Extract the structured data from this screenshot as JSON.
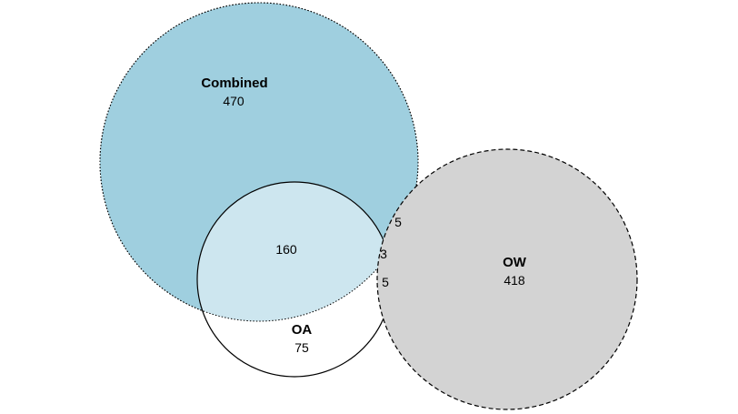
{
  "diagram": {
    "type": "venn",
    "sets": [
      {
        "key": "combined",
        "name": "Combined",
        "only_count": "470",
        "fill": "#9FCFDF",
        "border_style": "dotted"
      },
      {
        "key": "oa",
        "name": "OA",
        "only_count": "75",
        "fill": "#FFFFFF",
        "border_style": "solid"
      },
      {
        "key": "ow",
        "name": "OW",
        "only_count": "418",
        "fill": "#D3D3D3",
        "border_style": "dashed"
      }
    ],
    "intersections": {
      "combined_oa": "160",
      "combined_ow": "5",
      "combined_oa_ow": "3",
      "oa_ow": "5"
    },
    "colors": {
      "combined_oa_overlap": "#CDE6EF",
      "border": "#000000"
    }
  }
}
